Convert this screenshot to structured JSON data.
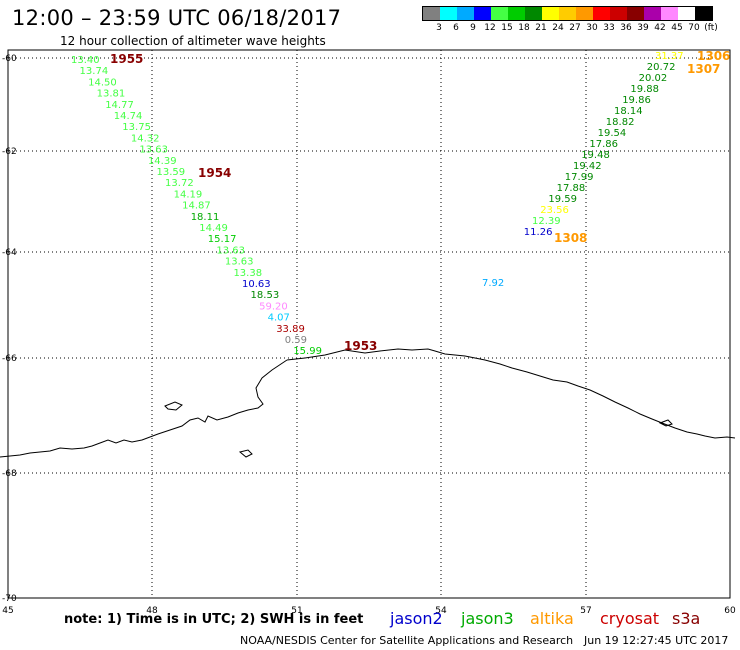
{
  "title": "12:00 – 23:59 UTC 06/18/2017",
  "subtitle": "12 hour collection of altimeter wave heights",
  "legend": {
    "colors": [
      "#808080",
      "#00ffff",
      "#00aaff",
      "#0000ff",
      "#44ff44",
      "#00cc00",
      "#008800",
      "#ffff00",
      "#ffcc00",
      "#ff9900",
      "#ff0000",
      "#cc0000",
      "#880000",
      "#aa00aa",
      "#ff88ff",
      "#ffffff",
      "#000000"
    ],
    "labels": [
      "3",
      "6",
      "9",
      "12",
      "15",
      "18",
      "21",
      "24",
      "27",
      "30",
      "33",
      "36",
      "39",
      "42",
      "45",
      "70",
      "(ft)"
    ]
  },
  "axes": {
    "lon_ticks": [
      "45",
      "48",
      "51",
      "54",
      "57",
      "60"
    ],
    "lat_ticks": [
      "-60",
      "-62",
      "-64",
      "-66",
      "-68",
      "-70"
    ]
  },
  "passes": [
    {
      "label": "1955",
      "color": "#880000"
    },
    {
      "label": "1954",
      "color": "#880000"
    },
    {
      "label": "1953",
      "color": "#880000"
    },
    {
      "label": "1306",
      "color": "#ff9900"
    },
    {
      "label": "1307",
      "color": "#ff9900"
    },
    {
      "label": "1308",
      "color": "#ff9900"
    }
  ],
  "track_left": [
    {
      "v": "13.40",
      "c": "#44ff44"
    },
    {
      "v": "13.74",
      "c": "#44ff44"
    },
    {
      "v": "14.50",
      "c": "#44ff44"
    },
    {
      "v": "13.81",
      "c": "#44ff44"
    },
    {
      "v": "14.77",
      "c": "#44ff44"
    },
    {
      "v": "14.74",
      "c": "#44ff44"
    },
    {
      "v": "13.75",
      "c": "#44ff44"
    },
    {
      "v": "14.32",
      "c": "#44ff44"
    },
    {
      "v": "13.63",
      "c": "#44ff44"
    },
    {
      "v": "14.39",
      "c": "#44ff44"
    },
    {
      "v": "13.59",
      "c": "#44ff44"
    },
    {
      "v": "13.72",
      "c": "#44ff44"
    },
    {
      "v": "14.19",
      "c": "#44ff44"
    },
    {
      "v": "14.87",
      "c": "#44ff44"
    },
    {
      "v": "18.11",
      "c": "#00aa00"
    },
    {
      "v": "14.49",
      "c": "#44ff44"
    },
    {
      "v": "15.17",
      "c": "#00cc00"
    },
    {
      "v": "13.63",
      "c": "#44ff44"
    },
    {
      "v": "13.63",
      "c": "#44ff44"
    },
    {
      "v": "13.38",
      "c": "#44ff44"
    },
    {
      "v": "10.63",
      "c": "#0000cc"
    },
    {
      "v": "18.53",
      "c": "#008800"
    },
    {
      "v": "59.20",
      "c": "#ff88ff"
    },
    {
      "v": "4.07",
      "c": "#00ccff"
    },
    {
      "v": "33.89",
      "c": "#aa0000"
    },
    {
      "v": "0.59",
      "c": "#808080"
    },
    {
      "v": "15.99",
      "c": "#00cc00"
    }
  ],
  "track_right": [
    {
      "v": "31.37",
      "c": "#ffff00"
    },
    {
      "v": "20.72",
      "c": "#008800"
    },
    {
      "v": "20.02",
      "c": "#008800"
    },
    {
      "v": "19.88",
      "c": "#008800"
    },
    {
      "v": "19.86",
      "c": "#008800"
    },
    {
      "v": "18.14",
      "c": "#008800"
    },
    {
      "v": "18.82",
      "c": "#008800"
    },
    {
      "v": "19.54",
      "c": "#008800"
    },
    {
      "v": "17.86",
      "c": "#008800"
    },
    {
      "v": "19.48",
      "c": "#008800"
    },
    {
      "v": "19.42",
      "c": "#008800"
    },
    {
      "v": "17.99",
      "c": "#008800"
    },
    {
      "v": "17.88",
      "c": "#008800"
    },
    {
      "v": "19.59",
      "c": "#008800"
    },
    {
      "v": "23.56",
      "c": "#ffff00"
    },
    {
      "v": "12.39",
      "c": "#44ff44"
    },
    {
      "v": "11.26",
      "c": "#0000cc"
    },
    {
      "v": "7.92",
      "c": "#00aaff"
    }
  ],
  "note": "note: 1) Time is in UTC; 2) SWH is in feet",
  "satellites": [
    {
      "name": "jason2",
      "color": "#0000cc"
    },
    {
      "name": "jason3",
      "color": "#00aa00"
    },
    {
      "name": "altika",
      "color": "#ff9900"
    },
    {
      "name": "cryosat",
      "color": "#cc0000"
    },
    {
      "name": "s3a",
      "color": "#880000"
    }
  ],
  "credit": "NOAA/NESDIS Center for Satellite Applications and Research",
  "timestamp": "Jun 19 12:27:45 UTC 2017"
}
